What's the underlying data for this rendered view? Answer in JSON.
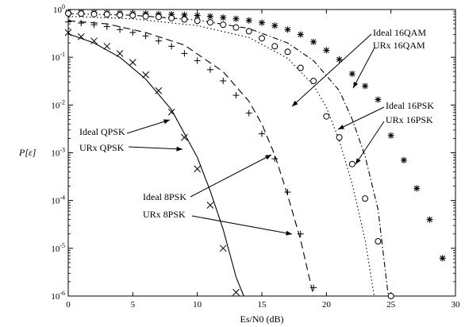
{
  "chart_data": {
    "type": "line",
    "x_axis": {
      "label": "Es/N0 (dB)",
      "min": 0,
      "max": 30,
      "ticks": [
        0,
        5,
        10,
        15,
        20,
        25,
        30
      ]
    },
    "y_axis": {
      "label": "P[ε]",
      "scale": "log",
      "min": 1e-06,
      "max": 1,
      "exponents": [
        0,
        -1,
        -2,
        -3,
        -4,
        -5,
        -6
      ]
    },
    "grid": false,
    "series": [
      {
        "name": "Ideal QPSK",
        "style": "solid",
        "x": [
          0,
          2,
          4,
          6,
          8,
          10,
          11,
          12,
          13,
          13.6
        ],
        "y": [
          0.31,
          0.2,
          0.1,
          0.035,
          0.008,
          0.0008,
          0.00016,
          2.5e-05,
          2.5e-06,
          1e-06
        ]
      },
      {
        "name": "URx QPSK",
        "marker": "x",
        "x": [
          0,
          1,
          2,
          3,
          4,
          5,
          6,
          7,
          8,
          9,
          10,
          11,
          12,
          13
        ],
        "y": [
          0.33,
          0.27,
          0.22,
          0.17,
          0.12,
          0.078,
          0.043,
          0.02,
          0.0071,
          0.0021,
          0.00046,
          8e-05,
          1e-05,
          1.2e-06
        ]
      },
      {
        "name": "Ideal 8PSK",
        "style": "dashed",
        "x": [
          0,
          3,
          6,
          9,
          12,
          14,
          15,
          16,
          17,
          18,
          19
        ],
        "y": [
          0.58,
          0.5,
          0.33,
          0.18,
          0.05,
          0.012,
          0.004,
          0.0009,
          0.00013,
          1.5e-05,
          1e-06
        ]
      },
      {
        "name": "URx 8PSK",
        "marker": "+",
        "x": [
          0,
          1,
          2,
          3,
          4,
          5,
          6,
          7,
          8,
          9,
          10,
          11,
          12,
          13,
          14,
          15,
          16,
          17,
          18,
          19
        ],
        "y": [
          0.55,
          0.52,
          0.48,
          0.44,
          0.38,
          0.33,
          0.28,
          0.22,
          0.17,
          0.12,
          0.085,
          0.055,
          0.032,
          0.016,
          0.0068,
          0.0025,
          0.00075,
          0.00015,
          2e-05,
          1.5e-06
        ]
      },
      {
        "name": "Ideal 16QAM",
        "style": "dotted",
        "x": [
          0,
          5,
          10,
          14,
          17,
          19,
          20,
          21,
          22,
          23,
          23.7
        ],
        "y": [
          0.72,
          0.64,
          0.46,
          0.26,
          0.095,
          0.026,
          0.009,
          0.0018,
          0.00022,
          1.5e-05,
          1e-06
        ]
      },
      {
        "name": "URx 16QAM",
        "marker": "asterisk",
        "x": [
          0,
          1,
          2,
          3,
          4,
          5,
          6,
          7,
          8,
          9,
          10,
          11,
          12,
          13,
          14,
          15,
          16,
          17,
          18,
          19,
          20,
          21,
          22,
          23,
          24,
          25,
          26,
          27,
          28,
          29
        ],
        "y": [
          0.88,
          0.87,
          0.86,
          0.85,
          0.84,
          0.83,
          0.82,
          0.8,
          0.79,
          0.77,
          0.75,
          0.72,
          0.68,
          0.64,
          0.59,
          0.53,
          0.46,
          0.38,
          0.3,
          0.21,
          0.14,
          0.09,
          0.045,
          0.025,
          0.013,
          0.0023,
          0.0007,
          0.00018,
          4e-05,
          6.2e-06
        ]
      },
      {
        "name": "Ideal 16PSK",
        "style": "dashdot",
        "x": [
          0,
          5,
          10,
          14,
          17,
          19,
          21,
          22,
          23,
          24,
          24.8
        ],
        "y": [
          0.82,
          0.76,
          0.6,
          0.4,
          0.2,
          0.085,
          0.02,
          0.005,
          0.00085,
          6.5e-05,
          1e-06
        ]
      },
      {
        "name": "URx 16PSK",
        "marker": "circle",
        "x": [
          0,
          1,
          2,
          3,
          4,
          5,
          6,
          7,
          8,
          9,
          10,
          11,
          12,
          13,
          14,
          15,
          16,
          17,
          18,
          19,
          20,
          21,
          22,
          23,
          24,
          25
        ],
        "y": [
          0.83,
          0.82,
          0.8,
          0.79,
          0.77,
          0.75,
          0.72,
          0.7,
          0.66,
          0.62,
          0.58,
          0.54,
          0.48,
          0.42,
          0.35,
          0.25,
          0.17,
          0.13,
          0.06,
          0.032,
          0.0058,
          0.0021,
          0.00058,
          0.00011,
          1.4e-05,
          1e-06
        ]
      }
    ],
    "annotations": [
      {
        "text": "Ideal QPSK"
      },
      {
        "text": "URx QPSK"
      },
      {
        "text": "Ideal 8PSK"
      },
      {
        "text": "URx 8PSK"
      },
      {
        "text": "Ideal 16QAM"
      },
      {
        "text": "URx 16QAM"
      },
      {
        "text": "Ideal 16PSK"
      },
      {
        "text": "URx 16PSK"
      }
    ]
  }
}
